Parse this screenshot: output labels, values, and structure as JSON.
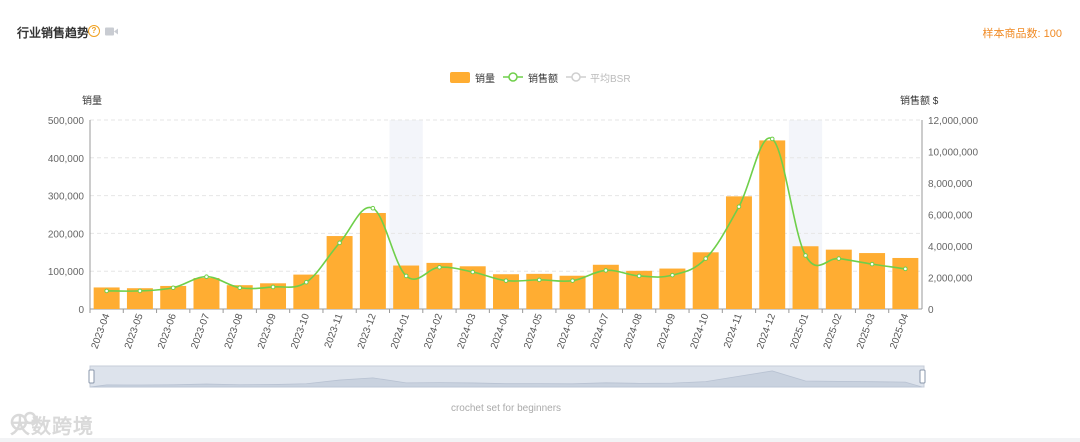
{
  "header": {
    "title": "行业销售趋势",
    "help_icon": "question-icon",
    "video_icon": "video-icon",
    "sample_label": "样本商品数: 100"
  },
  "watermark": "大数跨境",
  "colors": {
    "bar": "#ffad32",
    "line": "#6fcf4a",
    "bsr": "#cfcfcf",
    "accent": "#f08a24",
    "highlight": "#f3f5fa"
  },
  "chart_data": {
    "type": "bar",
    "legend": [
      "销量",
      "销售额",
      "平均BSR"
    ],
    "legend_position": "top-center",
    "yaxis_left": {
      "label": "销量",
      "ticks": [
        "0",
        "100,000",
        "200,000",
        "300,000",
        "400,000",
        "500,000"
      ],
      "range": [
        0,
        500000
      ]
    },
    "yaxis_right": {
      "label": "销售额 $",
      "ticks": [
        "0",
        "2,000,000",
        "4,000,000",
        "6,000,000",
        "8,000,000",
        "10,000,000",
        "12,000,000"
      ],
      "range": [
        0,
        12000000
      ]
    },
    "categories": [
      "2023-04",
      "2023-05",
      "2023-06",
      "2023-07",
      "2023-08",
      "2023-09",
      "2023-10",
      "2023-11",
      "2023-12",
      "2024-01",
      "2024-02",
      "2024-03",
      "2024-04",
      "2024-05",
      "2024-06",
      "2024-07",
      "2024-08",
      "2024-09",
      "2024-10",
      "2024-11",
      "2024-12",
      "2025-01",
      "2025-02",
      "2025-03",
      "2025-04"
    ],
    "series": [
      {
        "name": "销量",
        "type": "bar",
        "axis": "left",
        "values": [
          57000,
          55000,
          61000,
          82000,
          63000,
          68000,
          91000,
          193000,
          254000,
          115000,
          122000,
          113000,
          92000,
          93000,
          88000,
          117000,
          101000,
          107000,
          150000,
          298000,
          446000,
          166000,
          157000,
          148000,
          135000
        ]
      },
      {
        "name": "销售额",
        "type": "line",
        "axis": "right",
        "values": [
          1150000,
          1150000,
          1350000,
          2050000,
          1350000,
          1400000,
          1700000,
          4200000,
          6400000,
          2100000,
          2650000,
          2350000,
          1800000,
          1850000,
          1800000,
          2450000,
          2100000,
          2150000,
          3200000,
          6500000,
          10800000,
          3400000,
          3200000,
          2850000,
          2550000
        ]
      }
    ],
    "highlighted_categories": [
      "2024-01",
      "2025-01"
    ],
    "grid": true,
    "slider_label": "crochet set for beginners"
  }
}
